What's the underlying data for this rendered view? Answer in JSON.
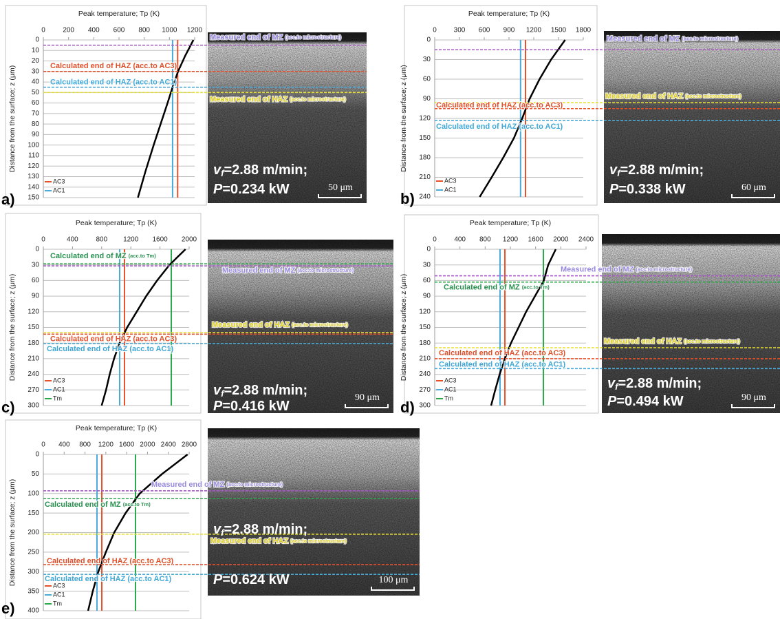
{
  "chart_data": [
    {
      "type": "line",
      "panel": "a)",
      "title": "Peak temperature; Tp (K)",
      "y_label": "Distance from the surface; z (μm)",
      "xlim": [
        0,
        1200
      ],
      "xticks": [
        0,
        200,
        400,
        600,
        800,
        1000,
        1200
      ],
      "ylim": [
        0,
        150
      ],
      "y_reversed": true,
      "yticks": [
        0,
        10,
        20,
        30,
        40,
        50,
        60,
        70,
        80,
        90,
        100,
        110,
        120,
        130,
        140,
        150
      ],
      "grid": true,
      "curve": {
        "color": "#000000",
        "x": [
          1190,
          1125,
          1068,
          1025,
          985,
          930,
          875,
          810,
          750
        ],
        "values": [
          0,
          15,
          30,
          45,
          60,
          80,
          100,
          125,
          150
        ]
      },
      "series": [
        {
          "name": "AC3",
          "color": "#e8502a",
          "value": 1065
        },
        {
          "name": "AC1",
          "color": "#4aaad8",
          "value": 1025
        }
      ],
      "annotations": [
        {
          "text": "Measured end of MZ",
          "note": "(acc.to microstructure)",
          "z": 5,
          "color": "#a855c8",
          "label_color": "#9a8ae0"
        },
        {
          "text": "Calculated end of HAZ (acc.to AC3)",
          "z": 30,
          "color": "#e8502a",
          "label_color": "#e0502a"
        },
        {
          "text": "Calculated end of HAZ (acc.to AC1)",
          "z": 45,
          "color": "#4aaad8",
          "label_color": "#40a8d8"
        },
        {
          "text": "Measured end of HAZ",
          "note": "(acc.to microstructure)",
          "z": 50,
          "color": "#e8e030",
          "label_color": "#e0d020"
        }
      ],
      "micrograph": {
        "speed_symbol": "v",
        "speed_subscript": "f",
        "speed_text": "=2.88 m/min;",
        "power_symbol": "P",
        "power_text": "=0.234 kW",
        "scale_bar": "50 μm"
      }
    },
    {
      "type": "line",
      "panel": "b)",
      "title": "Peak temperature; Tp (K)",
      "y_label": "Distance from the surface; z (μm)",
      "xlim": [
        0,
        1800
      ],
      "xticks": [
        0,
        300,
        600,
        900,
        1200,
        1500,
        1800
      ],
      "ylim": [
        0,
        240
      ],
      "y_reversed": true,
      "yticks": [
        0,
        30,
        60,
        90,
        120,
        150,
        180,
        210,
        240
      ],
      "grid": true,
      "curve": {
        "color": "#000000",
        "x": [
          1580,
          1410,
          1270,
          1150,
          1060,
          960,
          830,
          690,
          545
        ],
        "values": [
          0,
          30,
          60,
          90,
          120,
          150,
          180,
          210,
          240
        ]
      },
      "series": [
        {
          "name": "AC3",
          "color": "#e8502a",
          "value": 1100
        },
        {
          "name": "AC1",
          "color": "#4aaad8",
          "value": 1040
        }
      ],
      "annotations": [
        {
          "text": "Measured end of MZ",
          "note": "(acc.to microstructure)",
          "z": 15,
          "color": "#a855c8",
          "label_color": "#9a8ae0"
        },
        {
          "text": "Measured end of HAZ",
          "note": "(acc.to microstructure)",
          "z": 96,
          "color": "#e8e030",
          "label_color": "#e0d020"
        },
        {
          "text": "Calculated end of HAZ (acc.to AC3)",
          "z": 105,
          "color": "#e8502a",
          "label_color": "#e0502a"
        },
        {
          "text": "Calculated end of HAZ (acc.to AC1)",
          "z": 123,
          "color": "#4aaad8",
          "label_color": "#40a8d8"
        }
      ],
      "micrograph": {
        "speed_symbol": "v",
        "speed_subscript": "f",
        "speed_text": "=2.88 m/min;",
        "power_symbol": "P",
        "power_text": "=0.338 kW",
        "scale_bar": "60 μm"
      }
    },
    {
      "type": "line",
      "panel": "c)",
      "title": "Peak temperature; Tp (K)",
      "y_label": "Distance from the surface; z (μm)",
      "xlim": [
        0,
        2000
      ],
      "xticks": [
        0,
        400,
        800,
        1200,
        1600,
        2000
      ],
      "ylim": [
        0,
        300
      ],
      "y_reversed": true,
      "yticks": [
        0,
        30,
        60,
        90,
        120,
        150,
        180,
        210,
        240,
        270,
        300
      ],
      "grid": true,
      "curve": {
        "color": "#000000",
        "x": [
          1950,
          1730,
          1560,
          1410,
          1280,
          1150,
          1045,
          970,
          910,
          860,
          800
        ],
        "values": [
          0,
          30,
          60,
          90,
          120,
          150,
          180,
          210,
          240,
          270,
          300
        ]
      },
      "series": [
        {
          "name": "AC3",
          "color": "#e8502a",
          "value": 1113
        },
        {
          "name": "AC1",
          "color": "#4aaad8",
          "value": 1047
        },
        {
          "name": "Tm",
          "color": "#2aa84a",
          "value": 1755
        }
      ],
      "annotations": [
        {
          "text": "Calculated end of MZ",
          "note": "(acc.to Tm)",
          "z": 28,
          "color": "#2aa84a",
          "label_color": "#2a9050"
        },
        {
          "text": "Measured end of MZ",
          "note": "(acc.to microstructure)",
          "z": 32,
          "color": "#a855c8",
          "label_color": "#9a8ae0"
        },
        {
          "text": "Measured end of HAZ",
          "note": "(acc.to microstructure)",
          "z": 160,
          "color": "#e8e030",
          "label_color": "#e0d020"
        },
        {
          "text": "Calculated end of HAZ (acc.to AC3)",
          "z": 163,
          "color": "#e8502a",
          "label_color": "#e0502a"
        },
        {
          "text": "Calculated end of HAZ (acc.to AC1)",
          "z": 181,
          "color": "#4aaad8",
          "label_color": "#40a8d8"
        }
      ],
      "micrograph": {
        "speed_symbol": "v",
        "speed_subscript": "f",
        "speed_text": "=2.88 m/min;",
        "power_symbol": "P",
        "power_text": "=0.416 kW",
        "scale_bar": "90 μm"
      }
    },
    {
      "type": "line",
      "panel": "d)",
      "title": "Peak temperature; Tp (K)",
      "y_label": "Distance from the surface; z (μm)",
      "xlim": [
        0,
        2400
      ],
      "xticks": [
        0,
        400,
        800,
        1200,
        1600,
        2000,
        2400
      ],
      "ylim": [
        0,
        300
      ],
      "y_reversed": true,
      "yticks": [
        0,
        30,
        60,
        90,
        120,
        150,
        180,
        210,
        240,
        270,
        300
      ],
      "grid": true,
      "curve": {
        "color": "#000000",
        "x": [
          1920,
          1800,
          1730,
          1590,
          1450,
          1330,
          1210,
          1113,
          1030,
          960,
          895
        ],
        "values": [
          0,
          30,
          60,
          90,
          120,
          150,
          180,
          210,
          240,
          270,
          300
        ]
      },
      "series": [
        {
          "name": "AC3",
          "color": "#e8502a",
          "value": 1113
        },
        {
          "name": "AC1",
          "color": "#4aaad8",
          "value": 1036
        },
        {
          "name": "Tm",
          "color": "#2aa84a",
          "value": 1724
        }
      ],
      "annotations": [
        {
          "text": "Measured end of MZ",
          "note": "(acc.to microstructure)",
          "z": 51,
          "color": "#a855c8",
          "label_color": "#9a8ae0"
        },
        {
          "text": "Calculated end of MZ",
          "note": "(acc.to Tm)",
          "z": 63,
          "color": "#2aa84a",
          "label_color": "#2a9050"
        },
        {
          "text": "Measured end of HAZ",
          "note": "(acc.to microstructure)",
          "z": 189,
          "color": "#e8e030",
          "label_color": "#e0d020"
        },
        {
          "text": "Calculated end of HAZ (acc.to AC3)",
          "z": 210,
          "color": "#e8502a",
          "label_color": "#e0502a"
        },
        {
          "text": "Calculated end of HAZ (acc.to AC1)",
          "z": 229,
          "color": "#4aaad8",
          "label_color": "#40a8d8"
        }
      ],
      "micrograph": {
        "speed_symbol": "v",
        "speed_subscript": "f",
        "speed_text": "=2.88 m/min;",
        "power_symbol": "P",
        "power_text": "=0.494 kW",
        "scale_bar": "90 μm"
      }
    },
    {
      "type": "line",
      "panel": "e)",
      "title": "Peak temperature; Tp (K)",
      "y_label": "Distance from the surface; z (μm)",
      "xlim": [
        0,
        2800
      ],
      "xticks": [
        0,
        400,
        800,
        1200,
        1600,
        2000,
        2400,
        2800
      ],
      "ylim": [
        0,
        400
      ],
      "y_reversed": true,
      "yticks": [
        0,
        50,
        100,
        150,
        200,
        250,
        300,
        350,
        400
      ],
      "grid": true,
      "curve": {
        "color": "#000000",
        "x": [
          2770,
          2280,
          1850,
          1580,
          1360,
          1200,
          1055,
          950,
          860
        ],
        "values": [
          0,
          50,
          100,
          150,
          200,
          250,
          300,
          350,
          400
        ]
      },
      "series": [
        {
          "name": "AC3",
          "color": "#e8502a",
          "value": 1123
        },
        {
          "name": "AC1",
          "color": "#4aaad8",
          "value": 1030
        },
        {
          "name": "Tm",
          "color": "#2aa84a",
          "value": 1770
        }
      ],
      "annotations": [
        {
          "text": "Measured end of MZ",
          "note": "(acc.to microstructure)",
          "z": 93,
          "color": "#a855c8",
          "label_color": "#9a8ae0"
        },
        {
          "text": "Calculated end of MZ",
          "note": "(acc.to Tm)",
          "z": 113,
          "color": "#2aa84a",
          "label_color": "#2a9050"
        },
        {
          "text": "Measured end of HAZ",
          "note": "(acc.to microstructure)",
          "z": 204,
          "color": "#e8e030",
          "label_color": "#e0d020"
        },
        {
          "text": "Calculated end of HAZ (acc.to AC3)",
          "z": 282,
          "color": "#e8502a",
          "label_color": "#e0502a"
        },
        {
          "text": "Calculated end of HAZ (acc.to AC1)",
          "z": 307,
          "color": "#4aaad8",
          "label_color": "#40a8d8"
        }
      ],
      "micrograph": {
        "speed_symbol": "v",
        "speed_subscript": "f",
        "speed_text": "=2.88 m/min;",
        "power_symbol": "P",
        "power_text": "=0.624 kW",
        "scale_bar": "100 μm"
      }
    }
  ]
}
